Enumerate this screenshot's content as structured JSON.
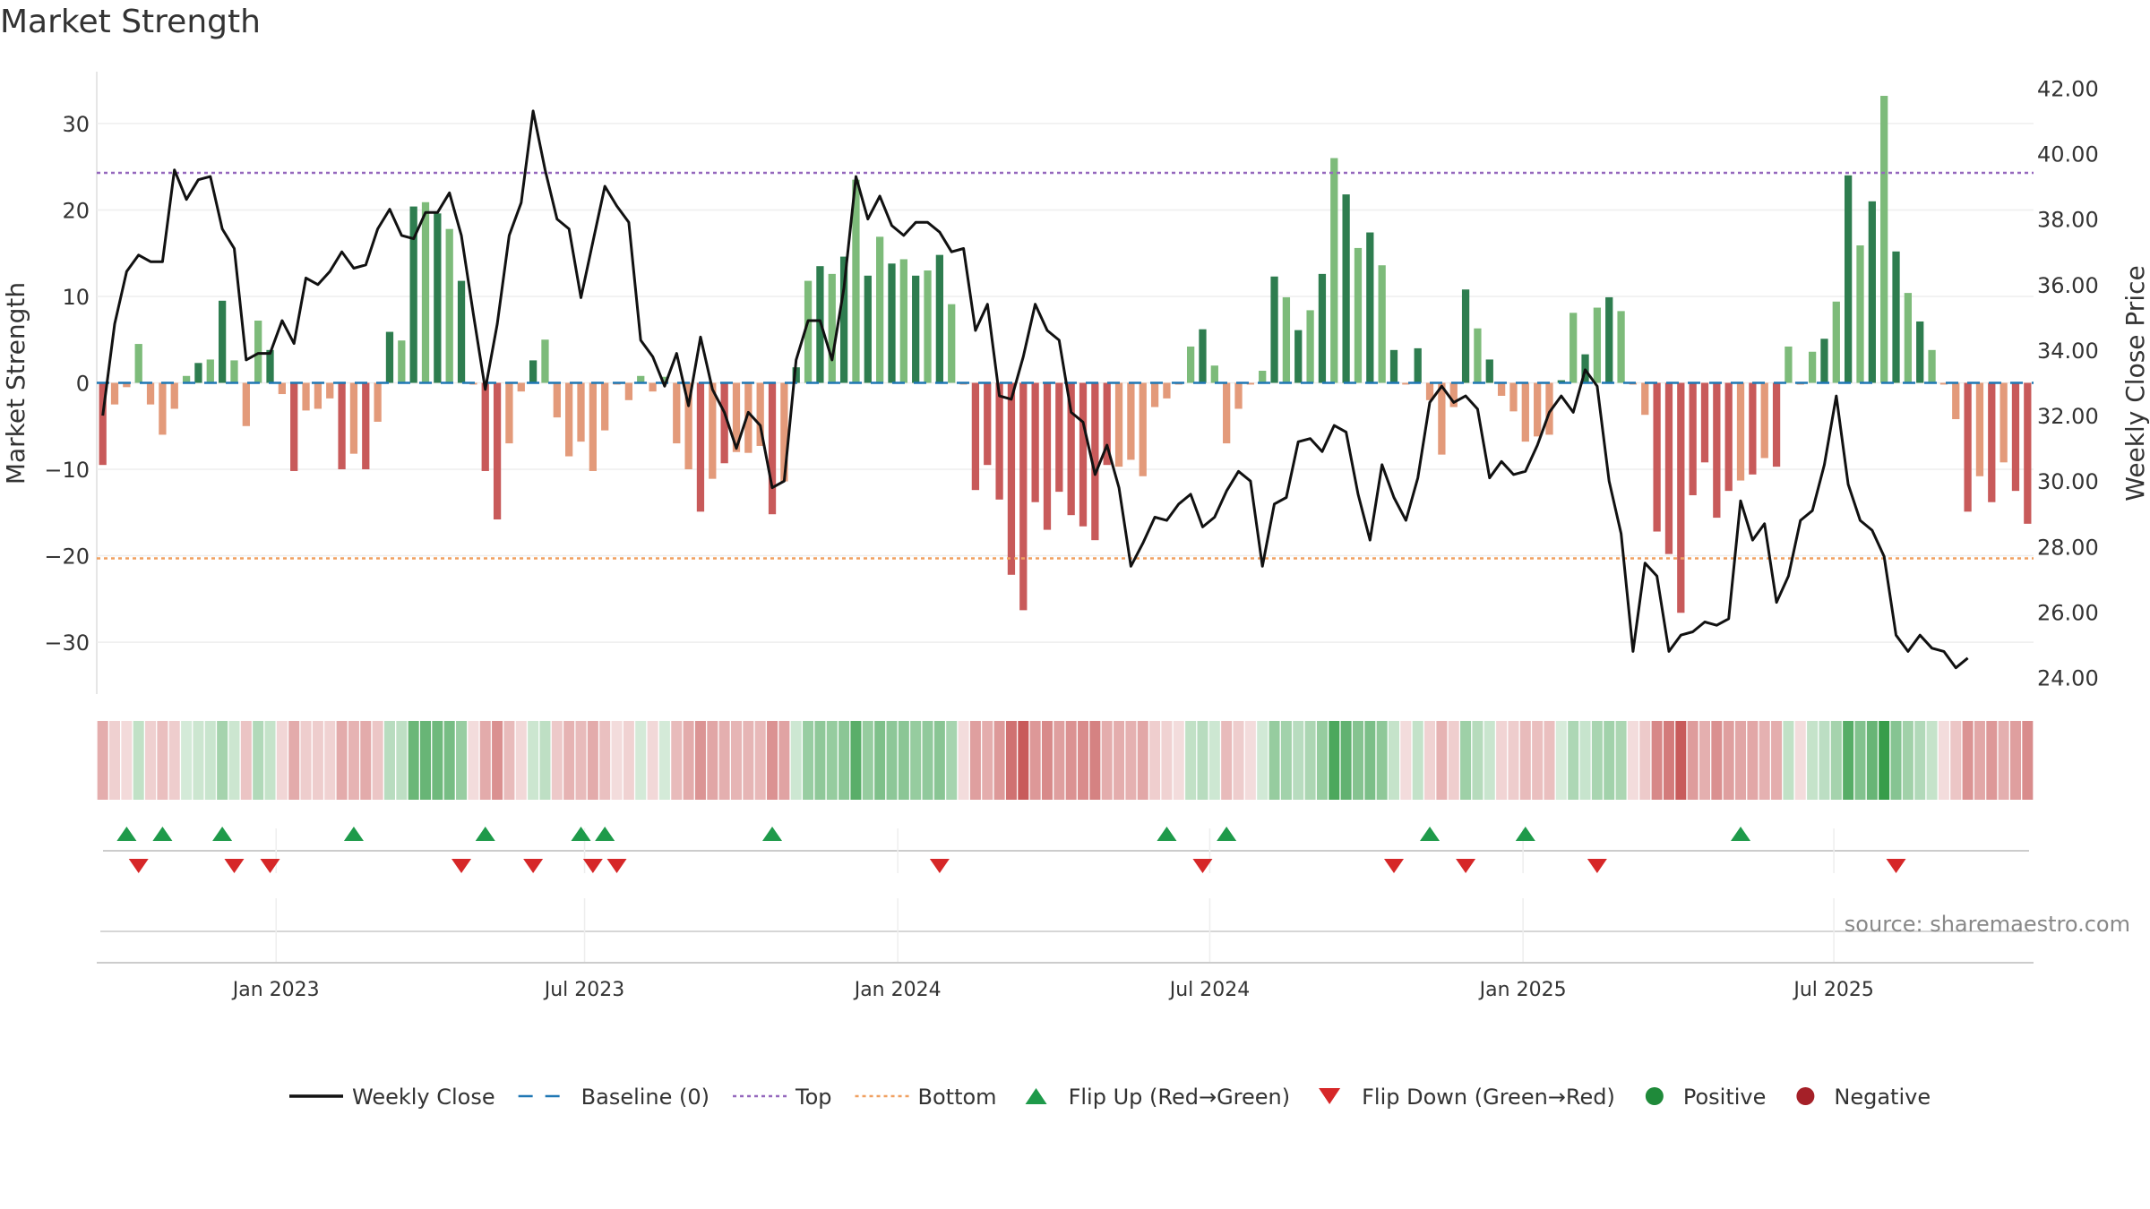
{
  "chart_data": {
    "type": "bar+line",
    "title": "Market Strength",
    "ylabel": "Market Strength",
    "y2label": "Weekly Close Price",
    "source": "source: sharemaestro.com",
    "ylim": [
      -36,
      36
    ],
    "y2lim": [
      23.5,
      42.5
    ],
    "yticks": [
      {
        "v": 30,
        "label": "30"
      },
      {
        "v": 20,
        "label": "20"
      },
      {
        "v": 10,
        "label": "10"
      },
      {
        "v": 0,
        "label": "0"
      },
      {
        "v": -10,
        "label": "−10"
      },
      {
        "v": -20,
        "label": "−20"
      },
      {
        "v": -30,
        "label": "−30"
      }
    ],
    "y2ticks": [
      {
        "v": 42,
        "label": "42.00"
      },
      {
        "v": 40,
        "label": "40.00"
      },
      {
        "v": 38,
        "label": "38.00"
      },
      {
        "v": 36,
        "label": "36.00"
      },
      {
        "v": 34,
        "label": "34.00"
      },
      {
        "v": 32,
        "label": "32.00"
      },
      {
        "v": 30,
        "label": "30.00"
      },
      {
        "v": 28,
        "label": "28.00"
      },
      {
        "v": 26,
        "label": "26.00"
      },
      {
        "v": 24,
        "label": "24.00"
      }
    ],
    "xticks": [
      {
        "week": 14.5,
        "label": "Jan 2023"
      },
      {
        "week": 40.3,
        "label": "Jul 2023"
      },
      {
        "week": 66.5,
        "label": "Jan 2024"
      },
      {
        "week": 92.6,
        "label": "Jul 2024"
      },
      {
        "week": 118.8,
        "label": "Jan 2025"
      },
      {
        "week": 144.8,
        "label": "Jul 2025"
      }
    ],
    "top_line": 24.3,
    "bottom_line": -20.3,
    "strength": [
      -9.5,
      -2.5,
      -0.5,
      4.5,
      -2.5,
      -6,
      -3,
      0.8,
      2.3,
      2.7,
      9.5,
      2.6,
      -5,
      7.2,
      3.8,
      -1.3,
      -10.2,
      -3.2,
      -3,
      -1.8,
      -10,
      -8.2,
      -10,
      -4.5,
      5.9,
      4.9,
      20.4,
      20.9,
      19.6,
      17.8,
      11.8,
      -0.2,
      -10.2,
      -15.8,
      -7,
      -1,
      2.6,
      5,
      -4,
      -8.5,
      -6.8,
      -10.2,
      -5.5,
      -0.2,
      -2,
      0.8,
      -1,
      0.7,
      -7,
      -10,
      -14.9,
      -11.1,
      -9.3,
      -8,
      -8.1,
      -7.3,
      -15.2,
      -11.4,
      1.8,
      11.8,
      13.5,
      12.6,
      14.6,
      23.5,
      12.4,
      16.9,
      13.8,
      14.3,
      12.4,
      13,
      14.8,
      9.1,
      -0.2,
      -12.4,
      -9.5,
      -13.5,
      -22.2,
      -26.3,
      -13.8,
      -17,
      -12.6,
      -15.3,
      -16.6,
      -18.2,
      -9.5,
      -9.7,
      -8.9,
      -10.8,
      -2.8,
      -1.8,
      -0.2,
      4.2,
      6.2,
      2,
      -7,
      -3,
      -0.2,
      1.4,
      12.3,
      9.9,
      6.1,
      8.4,
      12.6,
      26,
      21.8,
      15.6,
      17.4,
      13.6,
      3.8,
      -0.2,
      4,
      -2,
      -8.3,
      -2.8,
      10.8,
      6.3,
      2.7,
      -1.5,
      -3.3,
      -6.8,
      -6.2,
      -6,
      0.3,
      8.1,
      3.3,
      8.7,
      9.9,
      8.3,
      -0.2,
      -3.7,
      -17.2,
      -19.8,
      -26.6,
      -13,
      -9.2,
      -15.6,
      -12.5,
      -11.3,
      -10.6,
      -8.7,
      -9.7,
      4.2,
      -0.2,
      3.6,
      5.1,
      9.4,
      24,
      15.9,
      21,
      33.2,
      15.2,
      10.4,
      7.1,
      3.8,
      -0.2,
      -4.2,
      -14.9,
      -10.8,
      -13.8,
      -9.2,
      -12.5,
      -16.3
    ],
    "close": [
      32.0,
      34.8,
      36.4,
      36.9,
      36.7,
      36.7,
      39.5,
      38.6,
      39.2,
      39.3,
      37.7,
      37.1,
      33.7,
      33.9,
      33.9,
      34.9,
      34.2,
      36.2,
      36.0,
      36.4,
      37.0,
      36.5,
      36.6,
      37.7,
      38.3,
      37.5,
      37.4,
      38.2,
      38.2,
      38.8,
      37.5,
      35.1,
      32.8,
      34.8,
      37.5,
      38.5,
      41.3,
      39.5,
      38.0,
      37.7,
      35.6,
      37.3,
      39.0,
      38.4,
      37.9,
      34.3,
      33.8,
      32.9,
      33.9,
      32.3,
      34.4,
      32.8,
      32.1,
      31.0,
      32.1,
      31.7,
      29.8,
      30.0,
      33.7,
      34.9,
      34.9,
      33.7,
      35.9,
      39.3,
      38.0,
      38.7,
      37.8,
      37.5,
      37.9,
      37.9,
      37.6,
      37.0,
      37.1,
      34.6,
      35.4,
      32.6,
      32.5,
      33.8,
      35.4,
      34.6,
      34.3,
      32.1,
      31.8,
      30.2,
      31.1,
      29.8,
      27.4,
      28.1,
      28.9,
      28.8,
      29.3,
      29.6,
      28.6,
      28.9,
      29.7,
      30.3,
      30.0,
      27.4,
      29.3,
      29.5,
      31.2,
      31.3,
      30.9,
      31.7,
      31.5,
      29.6,
      28.2,
      30.5,
      29.5,
      28.8,
      30.1,
      32.4,
      32.9,
      32.4,
      32.6,
      32.2,
      30.1,
      30.6,
      30.2,
      30.3,
      31.1,
      32.1,
      32.6,
      32.1,
      33.4,
      32.9,
      30.0,
      28.4,
      24.8,
      27.5,
      27.1,
      24.8,
      25.3,
      25.4,
      25.7,
      25.6,
      25.8,
      29.4,
      28.2,
      28.7,
      26.3,
      27.1,
      28.8,
      29.1,
      30.5,
      32.6,
      29.9,
      28.8,
      28.5,
      27.7,
      25.3,
      24.8,
      25.3,
      24.9,
      24.8,
      24.3,
      24.6
    ],
    "heat_strip": "rolling market strength colour band beneath the chart",
    "flip_up_weeks": [
      2,
      5,
      10,
      21,
      32,
      40,
      42,
      56,
      89,
      94,
      111,
      119,
      137
    ],
    "flip_down_weeks": [
      3,
      11,
      14,
      30,
      36,
      41,
      43,
      70,
      92,
      108,
      114,
      125,
      150
    ],
    "legend": [
      {
        "kind": "line",
        "label": "Weekly Close",
        "color": "#111111"
      },
      {
        "kind": "dash",
        "label": "Baseline (0)",
        "color": "#1f77b4"
      },
      {
        "kind": "dot",
        "label": "Top",
        "color": "#9467bd"
      },
      {
        "kind": "dot",
        "label": "Bottom",
        "color": "#f0a060"
      },
      {
        "kind": "tri-up",
        "label": "Flip Up (Red→Green)",
        "color": "#1e9a4a"
      },
      {
        "kind": "tri-down",
        "label": "Flip Down (Green→Red)",
        "color": "#d62728"
      },
      {
        "kind": "circle",
        "label": "Positive",
        "color": "#1f8a3a"
      },
      {
        "kind": "circle",
        "label": "Negative",
        "color": "#a52028"
      }
    ],
    "colors": {
      "pos_strong": "#2e7d4f",
      "pos_weak": "#7dbb7a",
      "neg_strong": "#c85a5a",
      "neg_weak": "#e39a7a",
      "top": "#9467bd",
      "bottom": "#f0a060",
      "baseline": "#1f77b4"
    }
  }
}
